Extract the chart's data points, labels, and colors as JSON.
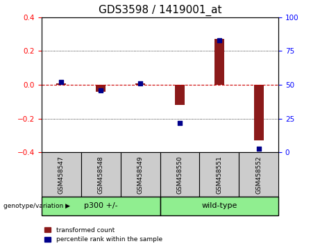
{
  "title": "GDS3598 / 1419001_at",
  "samples": [
    "GSM458547",
    "GSM458548",
    "GSM458549",
    "GSM458550",
    "GSM458551",
    "GSM458552"
  ],
  "transformed_count": [
    0.01,
    -0.04,
    0.01,
    -0.12,
    0.27,
    -0.33
  ],
  "percentile_rank": [
    52,
    46,
    51,
    22,
    83,
    3
  ],
  "ylim_left": [
    -0.4,
    0.4
  ],
  "ylim_right": [
    0,
    100
  ],
  "yticks_left": [
    -0.4,
    -0.2,
    0.0,
    0.2,
    0.4
  ],
  "yticks_right": [
    0,
    25,
    50,
    75,
    100
  ],
  "groups": [
    {
      "label": "p300 +/-",
      "color": "#90EE90",
      "start": 0,
      "end": 3
    },
    {
      "label": "wild-type",
      "color": "#90EE90",
      "start": 3,
      "end": 6
    }
  ],
  "group_label": "genotype/variation",
  "bar_color": "#8B1A1A",
  "dot_color": "#00008B",
  "zero_line_color": "#CC0000",
  "grid_color": "#000000",
  "sample_bg_color": "#CCCCCC",
  "bar_width": 0.25,
  "dot_size": 22,
  "legend_red_label": "transformed count",
  "legend_blue_label": "percentile rank within the sample",
  "title_fontsize": 11,
  "tick_fontsize": 7.5
}
